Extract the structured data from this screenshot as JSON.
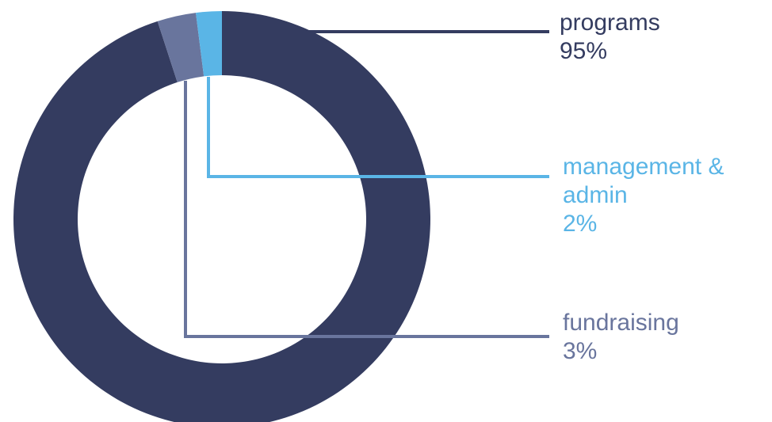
{
  "chart_data": {
    "type": "pie",
    "style": "donut",
    "title": "",
    "slices": [
      {
        "label": "programs",
        "label_lines": [
          "programs"
        ],
        "value": 95,
        "value_label": "95%",
        "color": "#343c60"
      },
      {
        "label": "fundraising",
        "label_lines": [
          "fundraising"
        ],
        "value": 3,
        "value_label": "3%",
        "color": "#69759d"
      },
      {
        "label": "management & admin",
        "label_lines": [
          "management &",
          "admin"
        ],
        "value": 2,
        "value_label": "2%",
        "color": "#5ab5e6"
      }
    ],
    "legend": "right, callout leader lines"
  }
}
